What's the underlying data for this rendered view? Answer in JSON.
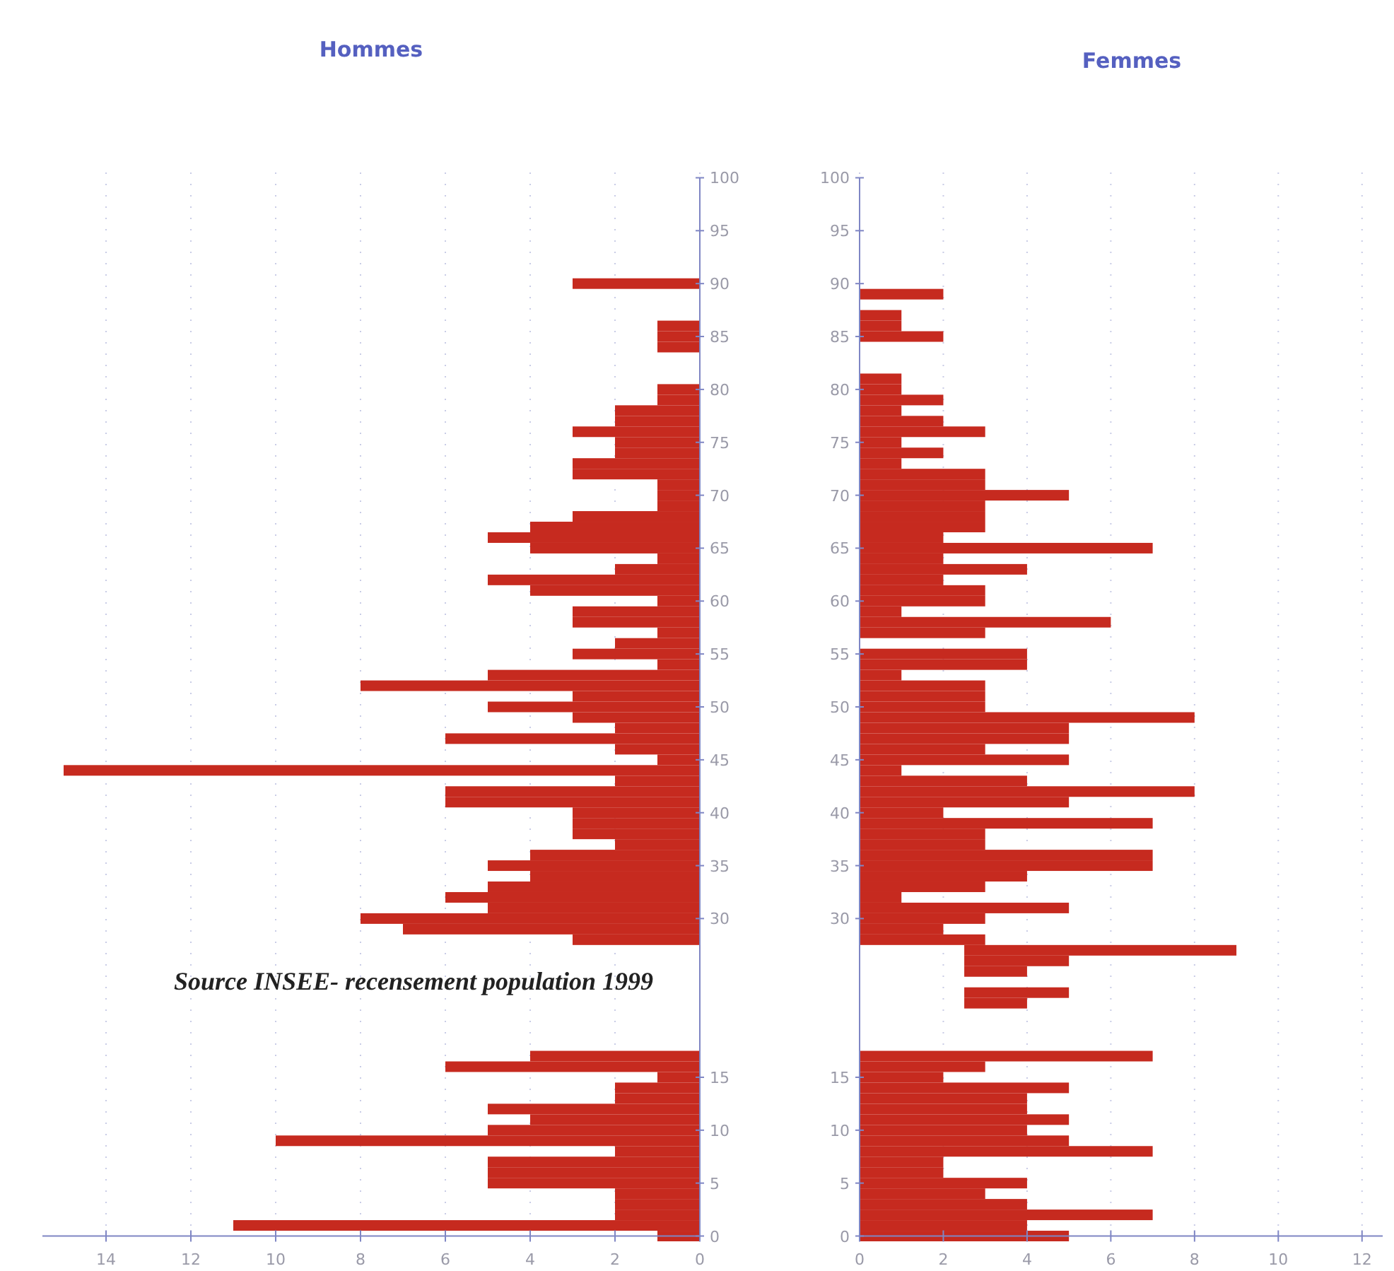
{
  "chart_data": [
    {
      "type": "bar",
      "orientation": "horizontal",
      "title": "Hommes",
      "color": "#c62a1f",
      "xlim": [
        15.5,
        0
      ],
      "xticks": [
        14,
        12,
        10,
        8,
        6,
        4,
        2,
        0
      ],
      "grid": "x",
      "annotations": [
        "Source INSEE- recensement population 1999"
      ],
      "categories": [
        "100",
        null,
        null,
        null,
        null,
        "95",
        null,
        null,
        null,
        null,
        "90",
        null,
        null,
        null,
        null,
        "85",
        null,
        null,
        null,
        null,
        "80",
        null,
        null,
        null,
        null,
        "75",
        null,
        null,
        null,
        null,
        "70",
        null,
        null,
        null,
        null,
        "65",
        null,
        null,
        null,
        null,
        "60",
        null,
        null,
        null,
        null,
        "55",
        null,
        null,
        null,
        null,
        "50",
        null,
        null,
        null,
        null,
        "45",
        null,
        null,
        null,
        null,
        "40",
        null,
        null,
        null,
        null,
        "35",
        null,
        null,
        null,
        null,
        "30",
        null,
        null,
        null,
        null,
        null,
        null,
        null,
        null,
        null,
        null,
        null,
        null,
        null,
        null,
        "15",
        null,
        null,
        null,
        null,
        "10",
        null,
        null,
        null,
        null,
        "5",
        null,
        null,
        null,
        null,
        "0"
      ],
      "values": [
        null,
        null,
        null,
        null,
        null,
        null,
        null,
        null,
        null,
        null,
        3,
        null,
        null,
        null,
        1,
        1,
        1,
        null,
        null,
        null,
        1,
        1,
        2,
        2,
        3,
        2,
        2,
        3,
        3,
        1,
        1,
        1,
        3,
        4,
        5,
        4,
        1,
        2,
        5,
        4,
        1,
        3,
        3,
        1,
        2,
        3,
        1,
        5,
        8,
        3,
        5,
        3,
        2,
        6,
        2,
        1,
        15,
        2,
        6,
        6,
        3,
        3,
        3,
        2,
        4,
        5,
        4,
        5,
        6,
        5,
        8,
        7,
        3,
        null,
        null,
        null,
        null,
        null,
        null,
        null,
        null,
        null,
        null,
        4,
        6,
        1,
        2,
        2,
        5,
        4,
        5,
        10,
        2,
        5,
        5,
        5,
        2,
        2,
        2,
        11,
        1
      ]
    },
    {
      "type": "bar",
      "orientation": "horizontal",
      "title": "Femmes",
      "color": "#c62a1f",
      "xlim": [
        0,
        13
      ],
      "xticks": [
        0,
        2,
        4,
        6,
        8,
        10,
        12
      ],
      "grid": "x",
      "categories": [
        "100",
        null,
        null,
        null,
        null,
        "95",
        null,
        null,
        null,
        null,
        "90",
        null,
        null,
        null,
        null,
        "85",
        null,
        null,
        null,
        null,
        "80",
        null,
        null,
        null,
        null,
        "75",
        null,
        null,
        null,
        null,
        "70",
        null,
        null,
        null,
        null,
        "65",
        null,
        null,
        null,
        null,
        "60",
        null,
        null,
        null,
        null,
        "55",
        null,
        null,
        null,
        null,
        "50",
        null,
        null,
        null,
        null,
        "45",
        null,
        null,
        null,
        null,
        "40",
        null,
        null,
        null,
        null,
        "35",
        null,
        null,
        null,
        null,
        "30",
        null,
        null,
        null,
        null,
        null,
        null,
        null,
        null,
        null,
        null,
        null,
        null,
        null,
        null,
        "15",
        null,
        null,
        null,
        null,
        "10",
        null,
        null,
        null,
        null,
        "5",
        null,
        null,
        null,
        null,
        "0"
      ],
      "values": [
        null,
        null,
        null,
        null,
        null,
        null,
        null,
        null,
        null,
        null,
        null,
        2,
        null,
        1,
        1,
        2,
        null,
        null,
        null,
        1,
        1,
        2,
        1,
        2,
        3,
        1,
        2,
        1,
        3,
        3,
        5,
        3,
        3,
        3,
        2,
        7,
        2,
        4,
        2,
        3,
        3,
        1,
        6,
        3,
        null,
        4,
        4,
        1,
        3,
        3,
        3,
        8,
        5,
        5,
        3,
        5,
        1,
        4,
        8,
        5,
        2,
        7,
        3,
        3,
        7,
        7,
        4,
        3,
        1,
        5,
        3,
        2,
        3,
        6.5,
        2.5,
        1.5,
        null,
        2.5,
        1.5,
        null,
        null,
        null,
        null,
        7,
        3,
        2,
        5,
        4,
        4,
        5,
        4,
        5,
        7,
        2,
        2,
        4,
        3,
        4,
        7,
        4,
        5
      ],
      "base": [
        null,
        null,
        null,
        null,
        null,
        null,
        null,
        null,
        null,
        null,
        null,
        0,
        null,
        0,
        0,
        0,
        null,
        null,
        null,
        0,
        0,
        0,
        0,
        0,
        0,
        0,
        0,
        0,
        0,
        0,
        0,
        0,
        0,
        0,
        0,
        0,
        0,
        0,
        0,
        0,
        0,
        0,
        0,
        0,
        null,
        0,
        0,
        0,
        0,
        0,
        0,
        0,
        0,
        0,
        0,
        0,
        0,
        0,
        0,
        0,
        0,
        0,
        0,
        0,
        0,
        0,
        0,
        0,
        0,
        0,
        0,
        0,
        0,
        2.5,
        2.5,
        2.5,
        null,
        2.5,
        2.5,
        null,
        null,
        null,
        null,
        0,
        0,
        0,
        0,
        0,
        0,
        0,
        0,
        0,
        0,
        0,
        0,
        0,
        0,
        0,
        0,
        0,
        0
      ]
    }
  ]
}
